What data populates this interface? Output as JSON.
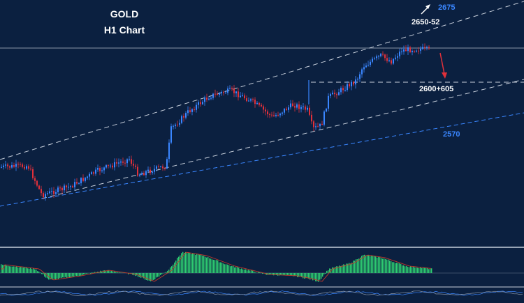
{
  "theme": {
    "background": "#0b2040",
    "bull_color": "#3a86ff",
    "bear_color": "#e0303a",
    "channel_color": "#c8d0dc",
    "support_color": "#3a86ff",
    "histogram_color": "#2ecc71",
    "signal_color": "#c0392b"
  },
  "chart_data": {
    "type": "candlestick",
    "title": "GOLD",
    "subtitle": "H1 Chart",
    "annotations": {
      "target_up": "2675",
      "resistance": "2650-52",
      "pivot": "2600+605",
      "support": "2570"
    },
    "icons": {
      "up_arrow": "white-arrow-up-right",
      "down_arrow": "red-arrow-down"
    },
    "grid": false,
    "oscillator": "histogram with signal line",
    "lower_indicator": "oscillator lines"
  }
}
